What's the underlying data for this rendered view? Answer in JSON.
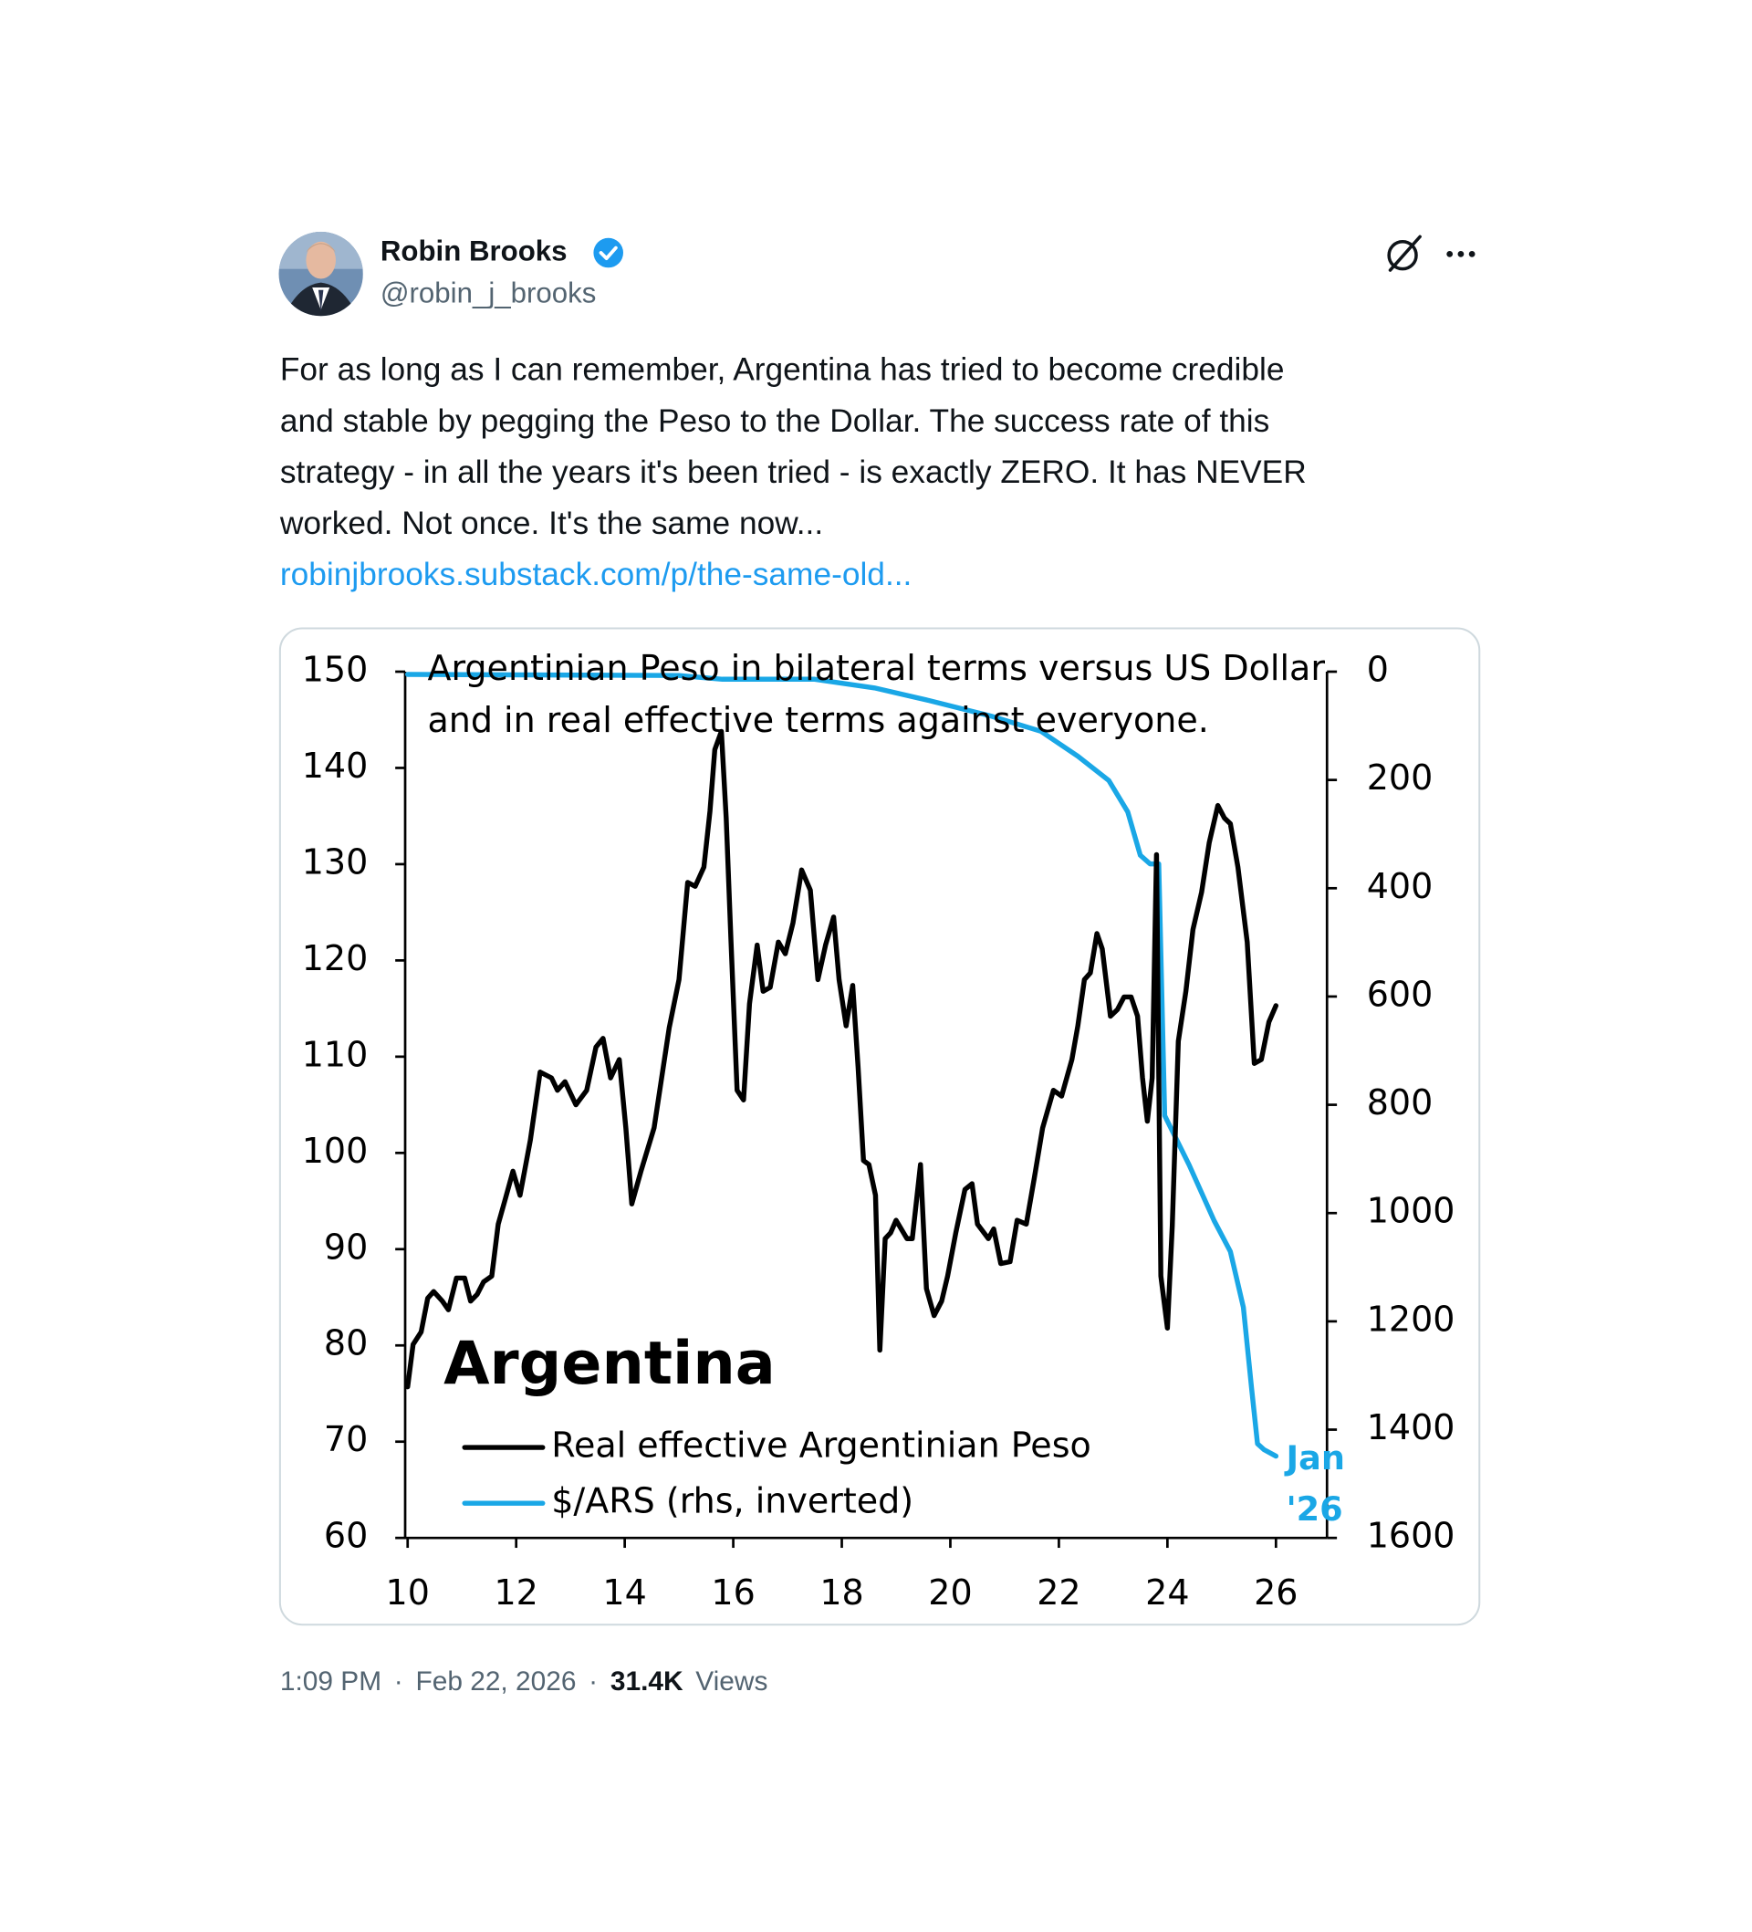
{
  "tweet": {
    "name": "Robin Brooks",
    "handle": "@robin_j_brooks",
    "body_lines": [
      "For as long as I can remember, Argentina has tried to become credible",
      "and stable by pegging the Peso to the Dollar. The success rate of this",
      "strategy - in all the years it's been tried - is exactly ZERO. It has NEVER",
      "worked. Not once. It's the same now..."
    ],
    "link": "robinjbrooks.substack.com/p/the-same-old...",
    "time": "1:09 PM",
    "separator": "·",
    "date": "Feb 22, 2026",
    "views_count": "31.4K",
    "views_label": "Views"
  },
  "chart_data": {
    "type": "line",
    "title_lines": [
      "Argentinian Peso in bilateral terms versus US Dollar",
      "and in real effective terms against everyone."
    ],
    "annotation": "Argentina",
    "end_label": [
      "Jan",
      "'26"
    ],
    "legend_loc": "lower left",
    "xlim": [
      10,
      27
    ],
    "xticks": [
      10,
      12,
      14,
      16,
      18,
      20,
      22,
      24,
      26
    ],
    "ylim": [
      60,
      150
    ],
    "yticks": [
      60,
      70,
      80,
      90,
      100,
      110,
      120,
      130,
      140,
      150
    ],
    "y2lim": [
      0,
      1600
    ],
    "y2ticks": [
      0,
      200,
      400,
      600,
      800,
      1000,
      1200,
      1400,
      1600
    ],
    "y2_inverted": true,
    "series": [
      {
        "name": "$/ARS (rhs, inverted)",
        "color": "#1aa7e6",
        "axis": "y2",
        "x": [
          10,
          15.0,
          15.8,
          17.5,
          18.6,
          19.6,
          20.75,
          21.67,
          22.35,
          22.92,
          23.27,
          23.5,
          23.68,
          23.84,
          23.95,
          24.4,
          24.86,
          25.16,
          25.4,
          25.55,
          25.66,
          25.78,
          26.0
        ],
        "values": [
          5,
          7,
          14,
          14,
          30,
          53,
          82,
          110,
          156,
          201,
          259,
          339,
          355,
          355,
          820,
          911,
          1014,
          1071,
          1174,
          1323,
          1426,
          1437,
          1449
        ]
      },
      {
        "name": "Real effective Argentinian Peso",
        "color": "#000000",
        "x": [
          10.0,
          10.1,
          10.25,
          10.37,
          10.48,
          10.64,
          10.75,
          10.9,
          11.05,
          11.16,
          11.28,
          11.4,
          11.55,
          11.67,
          11.8,
          11.94,
          12.07,
          12.26,
          12.44,
          12.65,
          12.76,
          12.9,
          13.1,
          13.3,
          13.47,
          13.6,
          13.74,
          13.9,
          14.02,
          14.13,
          14.3,
          14.54,
          14.82,
          15.0,
          15.16,
          15.3,
          15.46,
          15.57,
          15.66,
          15.78,
          15.87,
          15.96,
          16.07,
          16.19,
          16.3,
          16.44,
          16.55,
          16.68,
          16.83,
          16.96,
          17.1,
          17.26,
          17.42,
          17.56,
          17.7,
          17.85,
          17.95,
          18.08,
          18.2,
          18.3,
          18.4,
          18.5,
          18.62,
          18.7,
          18.8,
          18.9,
          19.0,
          19.2,
          19.3,
          19.45,
          19.56,
          19.7,
          19.84,
          19.95,
          20.1,
          20.27,
          20.4,
          20.5,
          20.7,
          20.8,
          20.93,
          21.1,
          21.23,
          21.4,
          21.55,
          21.7,
          21.9,
          22.05,
          22.24,
          22.35,
          22.47,
          22.58,
          22.7,
          22.8,
          22.95,
          23.08,
          23.2,
          23.33,
          23.45,
          23.54,
          23.63,
          23.72,
          23.8,
          23.88,
          24.0,
          24.09,
          24.2,
          24.34,
          24.47,
          24.63,
          24.77,
          24.93,
          25.05,
          25.16,
          25.3,
          25.47,
          25.6,
          25.73,
          25.87,
          26.0
        ],
        "values": [
          75.7,
          80.1,
          81.4,
          84.9,
          85.6,
          84.6,
          83.7,
          87.0,
          87.0,
          84.6,
          85.3,
          86.6,
          87.2,
          92.6,
          95.2,
          98.1,
          95.6,
          101.3,
          108.4,
          107.8,
          106.5,
          107.4,
          105.0,
          106.5,
          111.0,
          111.9,
          107.8,
          109.7,
          102.6,
          94.7,
          98.1,
          102.6,
          113.0,
          118.0,
          128.1,
          127.7,
          129.7,
          135.5,
          141.9,
          143.8,
          134.8,
          121.9,
          106.5,
          105.5,
          115.5,
          121.6,
          116.8,
          117.2,
          121.9,
          120.7,
          123.9,
          129.4,
          127.3,
          118.0,
          121.6,
          124.5,
          118.0,
          113.2,
          117.4,
          109.0,
          99.2,
          98.8,
          95.6,
          79.5,
          91.1,
          91.7,
          93.0,
          91.1,
          91.1,
          98.8,
          85.9,
          83.1,
          84.6,
          87.2,
          91.7,
          96.2,
          96.8,
          92.6,
          91.1,
          92.1,
          88.5,
          88.7,
          93.0,
          92.6,
          97.5,
          102.6,
          106.5,
          105.9,
          109.7,
          113.2,
          118.0,
          118.7,
          122.8,
          121.2,
          114.2,
          114.9,
          116.2,
          116.2,
          114.2,
          107.8,
          103.3,
          107.8,
          131.0,
          87.2,
          81.8,
          92.4,
          111.6,
          116.8,
          123.2,
          127.1,
          132.2,
          136.1,
          134.8,
          134.2,
          129.7,
          121.9,
          109.3,
          109.7,
          113.6,
          115.3
        ]
      }
    ]
  }
}
